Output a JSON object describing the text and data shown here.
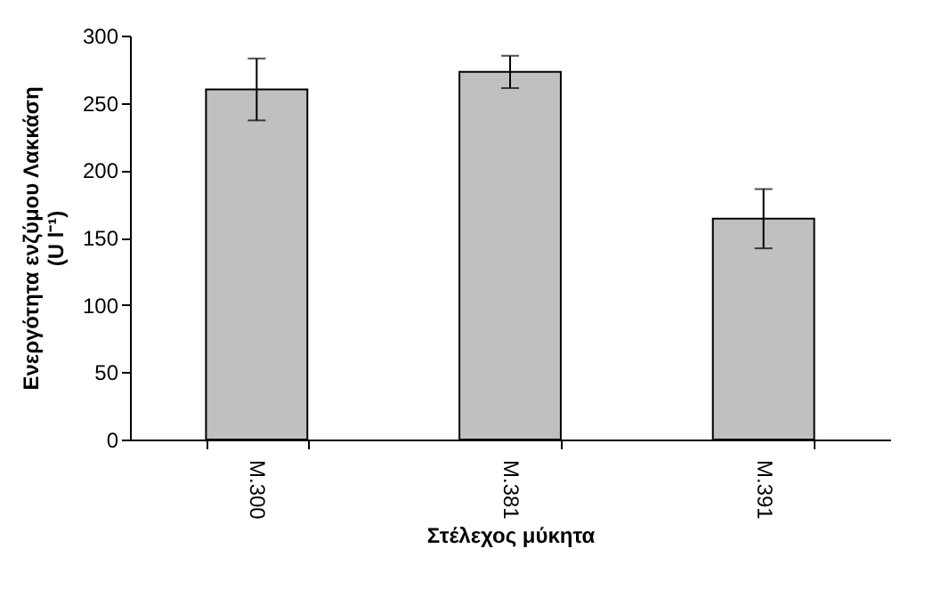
{
  "chart_data": {
    "type": "bar",
    "xlabel": "Στέλεχος μύκητα",
    "ylabel": "Ενεργότητα ενζύμου Λακκάση\n(U l⁻¹)",
    "categories": [
      "M.300",
      "M.381",
      "M.391"
    ],
    "values": [
      260,
      273,
      164
    ],
    "errors": [
      23,
      12,
      22
    ],
    "color": "#c0c0c0",
    "ylim": [
      0,
      300
    ],
    "yticks": [
      0,
      50,
      100,
      150,
      200,
      250,
      300
    ],
    "grid": false
  }
}
